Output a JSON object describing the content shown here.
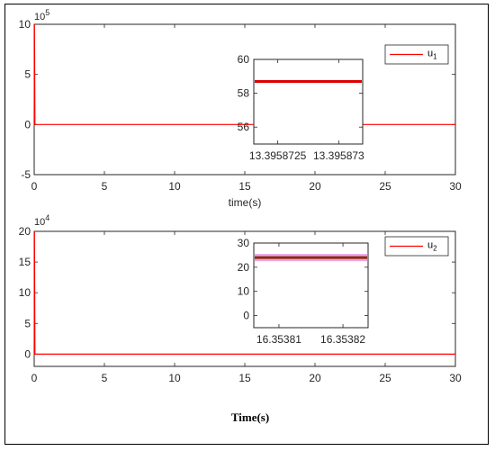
{
  "colors": {
    "series": "#ff0000",
    "inset1_line": "#e00000",
    "inset2_band": "#e8a8e8",
    "inset2_line": "#8b2a0a",
    "axis": "#262626"
  },
  "figure_caption": "Time(s)",
  "chart_data": [
    {
      "type": "line",
      "title": "",
      "xlabel": "time(s)",
      "ylabel": "",
      "xlim": [
        0,
        30
      ],
      "ylim": [
        -5,
        10
      ],
      "y_exponent_base": "10",
      "y_exponent_power": "5",
      "xticks": [
        "0",
        "5",
        "10",
        "15",
        "20",
        "25",
        "30"
      ],
      "yticks": [
        "-5",
        "0",
        "5",
        "10"
      ],
      "legend": "top-right",
      "series": [
        {
          "name": "u",
          "name_sub": "1",
          "x": [
            0,
            0.02,
            0.05,
            30
          ],
          "y": [
            0,
            10.5,
            0,
            0
          ]
        }
      ],
      "inset": {
        "ylim": [
          55,
          60
        ],
        "yticks": [
          "56",
          "58",
          "60"
        ],
        "xticks": [
          "13.3958725",
          "13.395873"
        ],
        "line_value": 58.7
      }
    },
    {
      "type": "line",
      "title": "",
      "xlabel": "",
      "ylabel": "",
      "xlim": [
        0,
        30
      ],
      "ylim": [
        -2,
        20
      ],
      "y_exponent_base": "10",
      "y_exponent_power": "4",
      "xticks": [
        "0",
        "5",
        "10",
        "15",
        "20",
        "25",
        "30"
      ],
      "yticks": [
        "0",
        "5",
        "10",
        "15",
        "20"
      ],
      "legend": "top-right",
      "series": [
        {
          "name": "u",
          "name_sub": "2",
          "x": [
            0,
            0.02,
            0.05,
            30
          ],
          "y": [
            0,
            20,
            0,
            0
          ]
        }
      ],
      "inset": {
        "ylim": [
          -5,
          30
        ],
        "yticks": [
          "0",
          "10",
          "20",
          "30"
        ],
        "xticks": [
          "16.35381",
          "16.35382"
        ],
        "line_value": 24,
        "band": [
          22.5,
          25.5
        ]
      }
    }
  ]
}
